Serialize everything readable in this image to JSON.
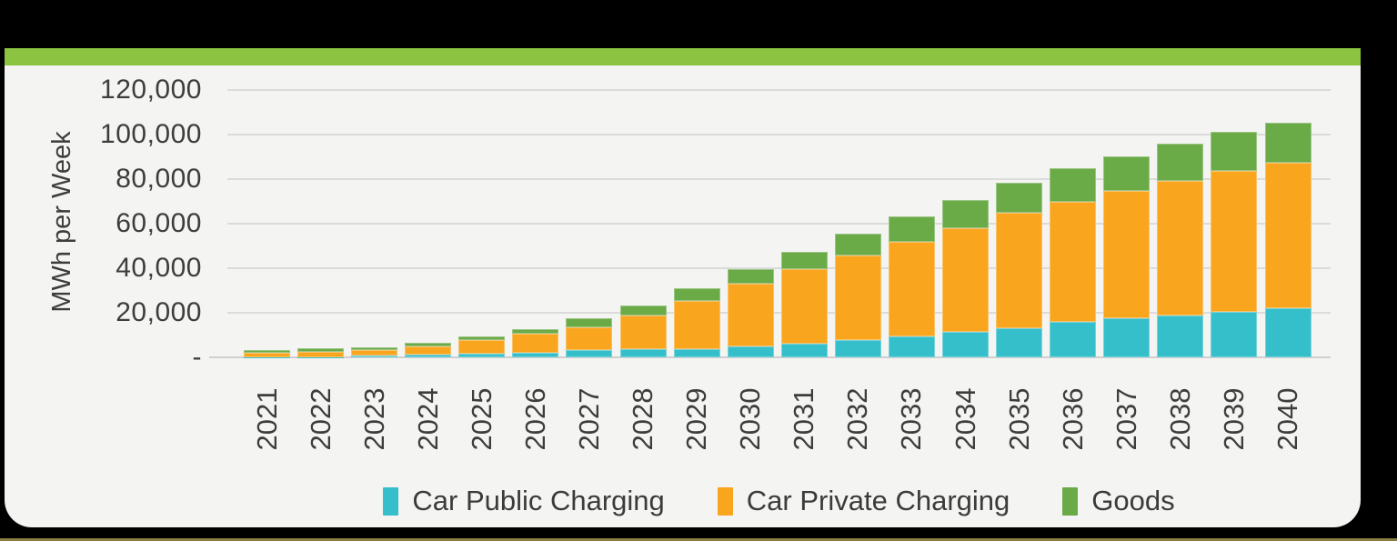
{
  "page": {
    "header_bar_color": "#8cc442",
    "card_background_color": "#f4f4f2",
    "frame_color": "#000000",
    "bottom_accent_color": "#897e3f",
    "gridline_color": "#dbdbd9",
    "axis_line_color": "#cfcfcd",
    "text_color": "#3d3d3d"
  },
  "chart_data": {
    "type": "bar",
    "stacked": true,
    "title": "",
    "xlabel": "",
    "ylabel": "MWh per Week",
    "grid": true,
    "legend_position": "bottom",
    "categories": [
      "2021",
      "2022",
      "2023",
      "2024",
      "2025",
      "2026",
      "2027",
      "2028",
      "2029",
      "2030",
      "2031",
      "2032",
      "2033",
      "2034",
      "2035",
      "2036",
      "2037",
      "2038",
      "2039",
      "2040"
    ],
    "series": [
      {
        "name": "Car Public Charging",
        "color": "#35bfca",
        "values": [
          100,
          200,
          700,
          1400,
          1800,
          2200,
          3400,
          3500,
          3800,
          4800,
          6100,
          7900,
          9200,
          11300,
          12900,
          16000,
          17400,
          18700,
          20400,
          22100
        ]
      },
      {
        "name": "Car Private Charging",
        "color": "#f9a51e",
        "values": [
          2000,
          2300,
          2600,
          3400,
          5800,
          8400,
          10200,
          15100,
          21700,
          28200,
          33400,
          38000,
          42700,
          46800,
          52000,
          53600,
          57300,
          60400,
          63100,
          65400
        ]
      },
      {
        "name": "Goods",
        "color": "#6aaa47",
        "values": [
          1200,
          1400,
          1400,
          1800,
          1900,
          1900,
          3800,
          4500,
          5700,
          6400,
          7900,
          9500,
          11300,
          12600,
          13300,
          15200,
          15700,
          16900,
          17700,
          17700
        ]
      }
    ],
    "y_axis": {
      "ylim": [
        0,
        120000
      ],
      "ticks": [
        {
          "label": "120,000",
          "value": 120000
        },
        {
          "label": "100,000",
          "value": 100000
        },
        {
          "label": "80,000",
          "value": 80000
        },
        {
          "label": "60,000",
          "value": 60000
        },
        {
          "label": "40,000",
          "value": 40000
        },
        {
          "label": "20,000",
          "value": 20000
        },
        {
          "label": "-",
          "value": 0
        }
      ]
    }
  }
}
